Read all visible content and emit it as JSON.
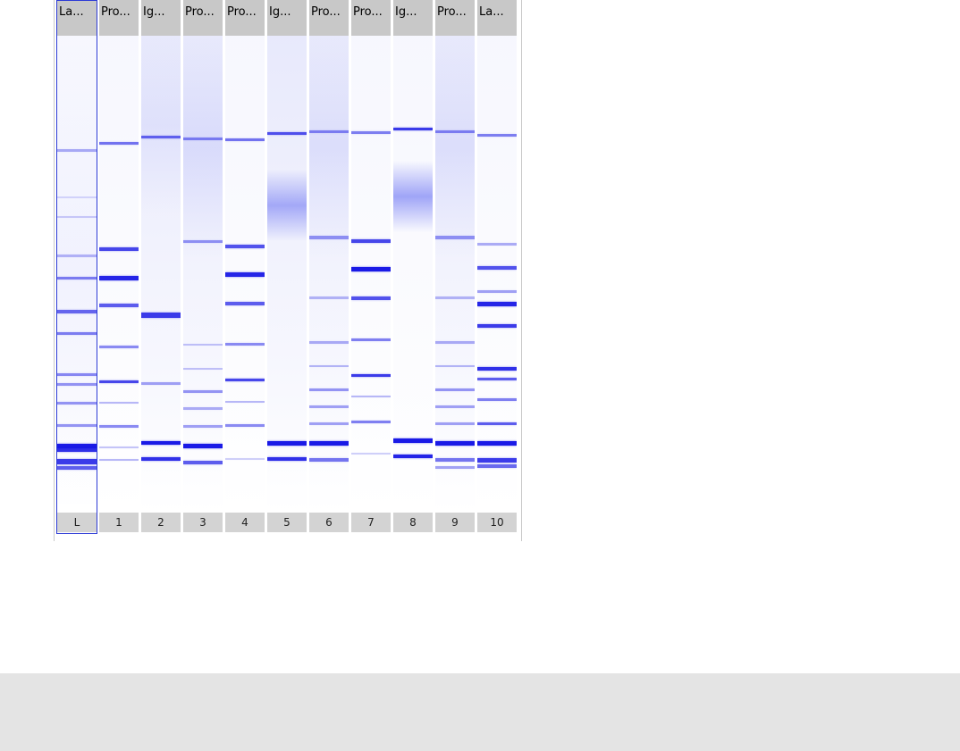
{
  "gel": {
    "lanes": [
      {
        "header": "La...",
        "number": "L",
        "selected": true
      },
      {
        "header": "Pro...",
        "number": "1",
        "selected": false
      },
      {
        "header": "Ig...",
        "number": "2",
        "selected": false
      },
      {
        "header": "Pro...",
        "number": "3",
        "selected": false
      },
      {
        "header": "Pro...",
        "number": "4",
        "selected": false
      },
      {
        "header": "Ig...",
        "number": "5",
        "selected": false
      },
      {
        "header": "Pro...",
        "number": "6",
        "selected": false
      },
      {
        "header": "Pro...",
        "number": "7",
        "selected": false
      },
      {
        "header": "Ig...",
        "number": "8",
        "selected": false
      },
      {
        "header": "Pro...",
        "number": "9",
        "selected": false
      },
      {
        "header": "La...",
        "number": "10",
        "selected": false
      }
    ]
  },
  "colors": {
    "band": "#1a1ae6",
    "lane_background": "#f4f4ff",
    "header_background": "#c8c8c8",
    "footer_background": "#d3d3d3",
    "selection_outline": "#2d3bd6",
    "bottom_panel": "#e4e4e4"
  }
}
